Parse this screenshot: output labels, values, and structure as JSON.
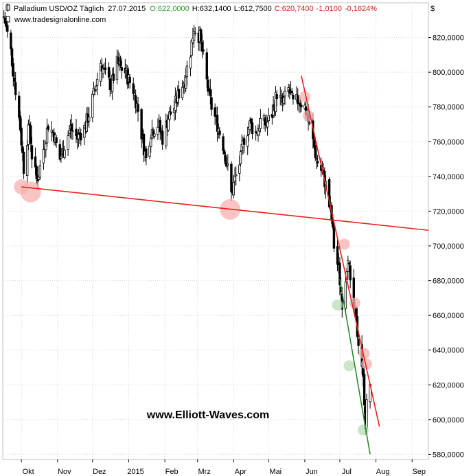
{
  "header": {
    "instrument": "Palladium USD/OZ Täglich",
    "date": "27.07.2015",
    "open": "O:622,0000",
    "high": "H:632,1400",
    "low": "L:612,7500",
    "close": "C:620,7400",
    "change": "-1,0100",
    "change_pct": "-0,1624%",
    "currency": "$",
    "source": "www.tradesignalonline.com"
  },
  "watermark": "www.Elliott-Waves.com",
  "colors": {
    "background": "#ffffff",
    "grid": "#d8d8d8",
    "candle": "#000000",
    "trendline": "#e8201c",
    "support_line": "#2a8a2a",
    "highlight_red": "#f7b0b0",
    "highlight_green": "#b8dcb8",
    "open_text": "#2e9a2e",
    "close_text": "#d42020"
  },
  "chart_data": {
    "type": "candlestick",
    "x_axis": {
      "type": "date",
      "range": [
        "2014-09-15",
        "2015-09-15"
      ],
      "tick_labels": [
        {
          "label": "Okt",
          "date": "2014-10-01"
        },
        {
          "label": "Nov",
          "date": "2014-11-01"
        },
        {
          "label": "Dez",
          "date": "2014-12-01"
        },
        {
          "label": "2015",
          "date": "2015-01-01"
        },
        {
          "label": "Feb",
          "date": "2015-02-01"
        },
        {
          "label": "Mrz",
          "date": "2015-03-01"
        },
        {
          "label": "Apr",
          "date": "2015-04-01"
        },
        {
          "label": "Mai",
          "date": "2015-05-01"
        },
        {
          "label": "Jun",
          "date": "2015-06-01"
        },
        {
          "label": "Jul",
          "date": "2015-07-01"
        },
        {
          "label": "Aug",
          "date": "2015-08-01"
        },
        {
          "label": "Sep",
          "date": "2015-09-01"
        }
      ]
    },
    "y_axis": {
      "range": [
        577,
        840
      ],
      "ticks": [
        {
          "value": 580,
          "label": "580,0000"
        },
        {
          "value": 600,
          "label": "600,0000"
        },
        {
          "value": 620,
          "label": "620,0000"
        },
        {
          "value": 640,
          "label": "640,0000"
        },
        {
          "value": 660,
          "label": "660,0000"
        },
        {
          "value": 680,
          "label": "680,0000"
        },
        {
          "value": 700,
          "label": "700,0000"
        },
        {
          "value": 720,
          "label": "720,0000"
        },
        {
          "value": 740,
          "label": "740,0000"
        },
        {
          "value": 760,
          "label": "760,0000"
        },
        {
          "value": 780,
          "label": "780,0000"
        },
        {
          "value": 800,
          "label": "800,0000"
        },
        {
          "value": 820,
          "label": "820,0000"
        }
      ]
    },
    "grid": true,
    "price_path": [
      [
        "2014-09-16",
        832
      ],
      [
        "2014-09-22",
        812
      ],
      [
        "2014-09-26",
        790
      ],
      [
        "2014-09-30",
        768
      ],
      [
        "2014-10-03",
        745
      ],
      [
        "2014-10-06",
        762
      ],
      [
        "2014-10-08",
        770
      ],
      [
        "2014-10-10",
        752
      ],
      [
        "2014-10-14",
        738
      ],
      [
        "2014-10-16",
        742
      ],
      [
        "2014-10-20",
        756
      ],
      [
        "2014-10-24",
        770
      ],
      [
        "2014-10-29",
        764
      ],
      [
        "2014-11-03",
        750
      ],
      [
        "2014-11-07",
        758
      ],
      [
        "2014-11-12",
        768
      ],
      [
        "2014-11-18",
        762
      ],
      [
        "2014-11-24",
        768
      ],
      [
        "2014-11-28",
        776
      ],
      [
        "2014-12-03",
        790
      ],
      [
        "2014-12-08",
        806
      ],
      [
        "2014-12-12",
        798
      ],
      [
        "2014-12-17",
        792
      ],
      [
        "2014-12-22",
        805
      ],
      [
        "2014-12-29",
        800
      ],
      [
        "2015-01-05",
        790
      ],
      [
        "2015-01-09",
        778
      ],
      [
        "2015-01-13",
        760
      ],
      [
        "2015-01-16",
        750
      ],
      [
        "2015-01-20",
        766
      ],
      [
        "2015-01-26",
        770
      ],
      [
        "2015-01-30",
        762
      ],
      [
        "2015-02-04",
        774
      ],
      [
        "2015-02-09",
        780
      ],
      [
        "2015-02-13",
        788
      ],
      [
        "2015-02-18",
        796
      ],
      [
        "2015-02-23",
        812
      ],
      [
        "2015-02-26",
        826
      ],
      [
        "2015-03-03",
        820
      ],
      [
        "2015-03-06",
        808
      ],
      [
        "2015-03-10",
        790
      ],
      [
        "2015-03-13",
        780
      ],
      [
        "2015-03-18",
        770
      ],
      [
        "2015-03-23",
        758
      ],
      [
        "2015-03-27",
        744
      ],
      [
        "2015-03-30",
        730
      ],
      [
        "2015-04-02",
        738
      ],
      [
        "2015-04-07",
        750
      ],
      [
        "2015-04-10",
        762
      ],
      [
        "2015-04-15",
        770
      ],
      [
        "2015-04-20",
        765
      ],
      [
        "2015-04-24",
        772
      ],
      [
        "2015-04-29",
        770
      ],
      [
        "2015-05-04",
        776
      ],
      [
        "2015-05-08",
        788
      ],
      [
        "2015-05-13",
        782
      ],
      [
        "2015-05-18",
        790
      ],
      [
        "2015-05-22",
        782
      ],
      [
        "2015-05-27",
        784
      ],
      [
        "2015-06-01",
        780
      ],
      [
        "2015-06-04",
        772
      ],
      [
        "2015-06-08",
        760
      ],
      [
        "2015-06-11",
        750
      ],
      [
        "2015-06-16",
        742
      ],
      [
        "2015-06-19",
        735
      ],
      [
        "2015-06-24",
        715
      ],
      [
        "2015-06-26",
        700
      ],
      [
        "2015-06-30",
        686
      ],
      [
        "2015-07-03",
        668
      ],
      [
        "2015-07-06",
        682
      ],
      [
        "2015-07-08",
        696
      ],
      [
        "2015-07-10",
        676
      ],
      [
        "2015-07-14",
        660
      ],
      [
        "2015-07-16",
        650
      ],
      [
        "2015-07-20",
        632
      ],
      [
        "2015-07-22",
        612
      ],
      [
        "2015-07-23",
        598
      ],
      [
        "2015-07-24",
        608
      ],
      [
        "2015-07-27",
        621
      ]
    ],
    "annotations": {
      "lines": [
        {
          "name": "support-trendline",
          "color": "red",
          "from": [
            "2014-10-01",
            734
          ],
          "to": [
            "2015-09-15",
            709
          ]
        },
        {
          "name": "resistance-trendline",
          "color": "red",
          "from": [
            "2015-05-29",
            798
          ],
          "to": [
            "2015-08-04",
            596
          ]
        },
        {
          "name": "lower-channel-line",
          "color": "green",
          "from": [
            "2015-07-01",
            681
          ],
          "to": [
            "2015-07-27",
            580
          ]
        }
      ],
      "circles": [
        {
          "color": "red",
          "date": "2014-10-01",
          "value": 734,
          "size": "medium"
        },
        {
          "color": "red",
          "date": "2014-10-09",
          "value": 731,
          "size": "large"
        },
        {
          "color": "red",
          "date": "2015-03-29",
          "value": 721,
          "size": "large"
        },
        {
          "color": "red",
          "date": "2015-06-01",
          "value": 786,
          "size": "small"
        },
        {
          "color": "red",
          "date": "2015-06-04",
          "value": 775,
          "size": "small"
        },
        {
          "color": "red",
          "date": "2015-07-05",
          "value": 701,
          "size": "small"
        },
        {
          "color": "red",
          "date": "2015-07-14",
          "value": 667,
          "size": "small"
        },
        {
          "color": "red",
          "date": "2015-07-22",
          "value": 638,
          "size": "small"
        },
        {
          "color": "red",
          "date": "2015-07-24",
          "value": 632,
          "size": "small"
        },
        {
          "color": "green",
          "date": "2015-06-29",
          "value": 666,
          "size": "small"
        },
        {
          "color": "green",
          "date": "2015-07-09",
          "value": 631,
          "size": "small"
        },
        {
          "color": "green",
          "date": "2015-07-21",
          "value": 594,
          "size": "small"
        }
      ]
    }
  }
}
